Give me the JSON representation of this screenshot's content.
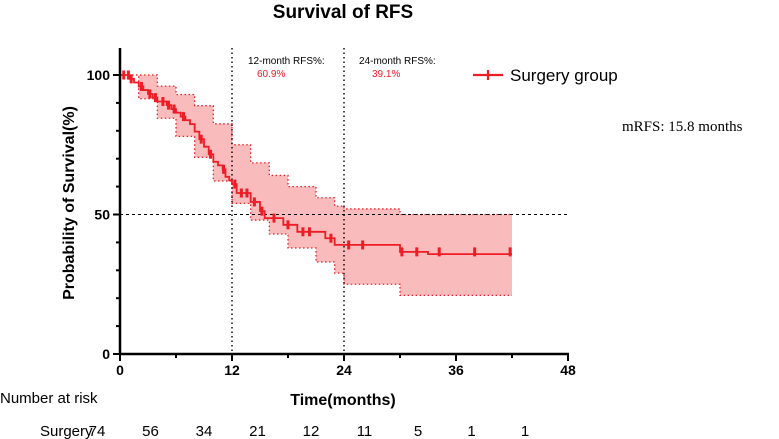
{
  "chart_data": {
    "type": "line",
    "subtype": "kaplan-meier",
    "title": "Survival of RFS",
    "xlabel": "Time(months)",
    "ylabel": "Probability of Survival(%)",
    "xlim": [
      0,
      48
    ],
    "ylim": [
      0,
      100
    ],
    "xticks": [
      "0",
      "12",
      "24",
      "36",
      "48"
    ],
    "yticks": [
      "0",
      "50",
      "100"
    ],
    "grid": false,
    "legend_position": "top-right",
    "series": [
      {
        "name": "Surgery group",
        "color": "#ee1c24",
        "ci_fill": "#f8b4b4",
        "steps": [
          [
            0,
            100
          ],
          [
            1,
            98.6
          ],
          [
            1.5,
            97.3
          ],
          [
            2,
            95.9
          ],
          [
            2.5,
            94.6
          ],
          [
            3,
            93.2
          ],
          [
            3.5,
            91.9
          ],
          [
            4,
            90.5
          ],
          [
            5,
            89.2
          ],
          [
            5.5,
            87.8
          ],
          [
            6,
            86.5
          ],
          [
            6.5,
            85.1
          ],
          [
            7,
            83.8
          ],
          [
            7.5,
            82.4
          ],
          [
            8,
            79.7
          ],
          [
            8.5,
            77
          ],
          [
            9,
            74.3
          ],
          [
            9.5,
            71.6
          ],
          [
            10,
            68.9
          ],
          [
            10.5,
            67.6
          ],
          [
            11,
            66.2
          ],
          [
            11.3,
            63.5
          ],
          [
            11.7,
            62.2
          ],
          [
            12,
            60.9
          ],
          [
            12.5,
            57.7
          ],
          [
            14,
            54.5
          ],
          [
            15,
            51.2
          ],
          [
            15.5,
            48.7
          ],
          [
            17.5,
            46.3
          ],
          [
            19,
            43.8
          ],
          [
            22,
            41.5
          ],
          [
            23,
            39.1
          ],
          [
            30,
            36.6
          ],
          [
            33,
            35.8
          ],
          [
            42,
            35.8
          ]
        ],
        "ci_lower": [
          [
            0,
            100
          ],
          [
            2,
            91.5
          ],
          [
            4,
            84.5
          ],
          [
            6,
            78
          ],
          [
            8,
            70.5
          ],
          [
            10,
            62
          ],
          [
            12,
            54
          ],
          [
            14,
            48
          ],
          [
            16,
            43
          ],
          [
            18,
            38
          ],
          [
            21,
            33
          ],
          [
            23,
            29
          ],
          [
            24,
            25
          ],
          [
            30,
            21
          ],
          [
            42,
            21
          ]
        ],
        "ci_upper": [
          [
            0,
            100
          ],
          [
            2,
            100
          ],
          [
            4,
            96
          ],
          [
            6,
            93
          ],
          [
            8,
            89
          ],
          [
            10,
            82.5
          ],
          [
            12,
            75
          ],
          [
            14,
            68.5
          ],
          [
            16,
            64
          ],
          [
            18,
            60
          ],
          [
            21,
            56
          ],
          [
            23,
            53
          ],
          [
            24,
            52
          ],
          [
            30,
            50
          ],
          [
            42,
            50
          ]
        ],
        "censored": [
          [
            0.4,
            100
          ],
          [
            0.9,
            100
          ],
          [
            1.2,
            98.6
          ],
          [
            2.3,
            95.9
          ],
          [
            3.2,
            93.2
          ],
          [
            3.8,
            91.9
          ],
          [
            4.6,
            90.5
          ],
          [
            5.2,
            89.2
          ],
          [
            5.8,
            87.8
          ],
          [
            6.8,
            85.1
          ],
          [
            8.7,
            77
          ],
          [
            9.7,
            71.6
          ],
          [
            11.1,
            66.2
          ],
          [
            12.3,
            60.9
          ],
          [
            13.0,
            57.7
          ],
          [
            13.6,
            57.7
          ],
          [
            14.4,
            54.5
          ],
          [
            15.2,
            51.2
          ],
          [
            16.5,
            48.7
          ],
          [
            18.0,
            46.3
          ],
          [
            19.6,
            43.8
          ],
          [
            20.3,
            43.8
          ],
          [
            22.6,
            41.5
          ],
          [
            24.5,
            39.1
          ],
          [
            26.0,
            39.1
          ],
          [
            30.2,
            36.6
          ],
          [
            31.8,
            36.6
          ],
          [
            34.2,
            36.6
          ],
          [
            38.0,
            36.6
          ],
          [
            41.8,
            36.6
          ]
        ]
      }
    ],
    "reference_lines": {
      "horizontal_y": 50,
      "vertical_x": [
        12,
        24
      ]
    },
    "annotations": [
      {
        "label": "12-month RFS%:",
        "value": "60.9%"
      },
      {
        "label": "24-month RFS%:",
        "value": "39.1%"
      },
      {
        "label": "mRFS: 15.8 months"
      }
    ],
    "risk_table": {
      "title": "Number at risk",
      "rows": [
        {
          "label": "Surgery",
          "values": [
            "74",
            "56",
            "34",
            "21",
            "12",
            "11",
            "5",
            "1",
            "1"
          ]
        }
      ],
      "times": [
        0,
        6,
        12,
        18,
        24,
        30,
        36,
        42,
        48
      ]
    }
  }
}
